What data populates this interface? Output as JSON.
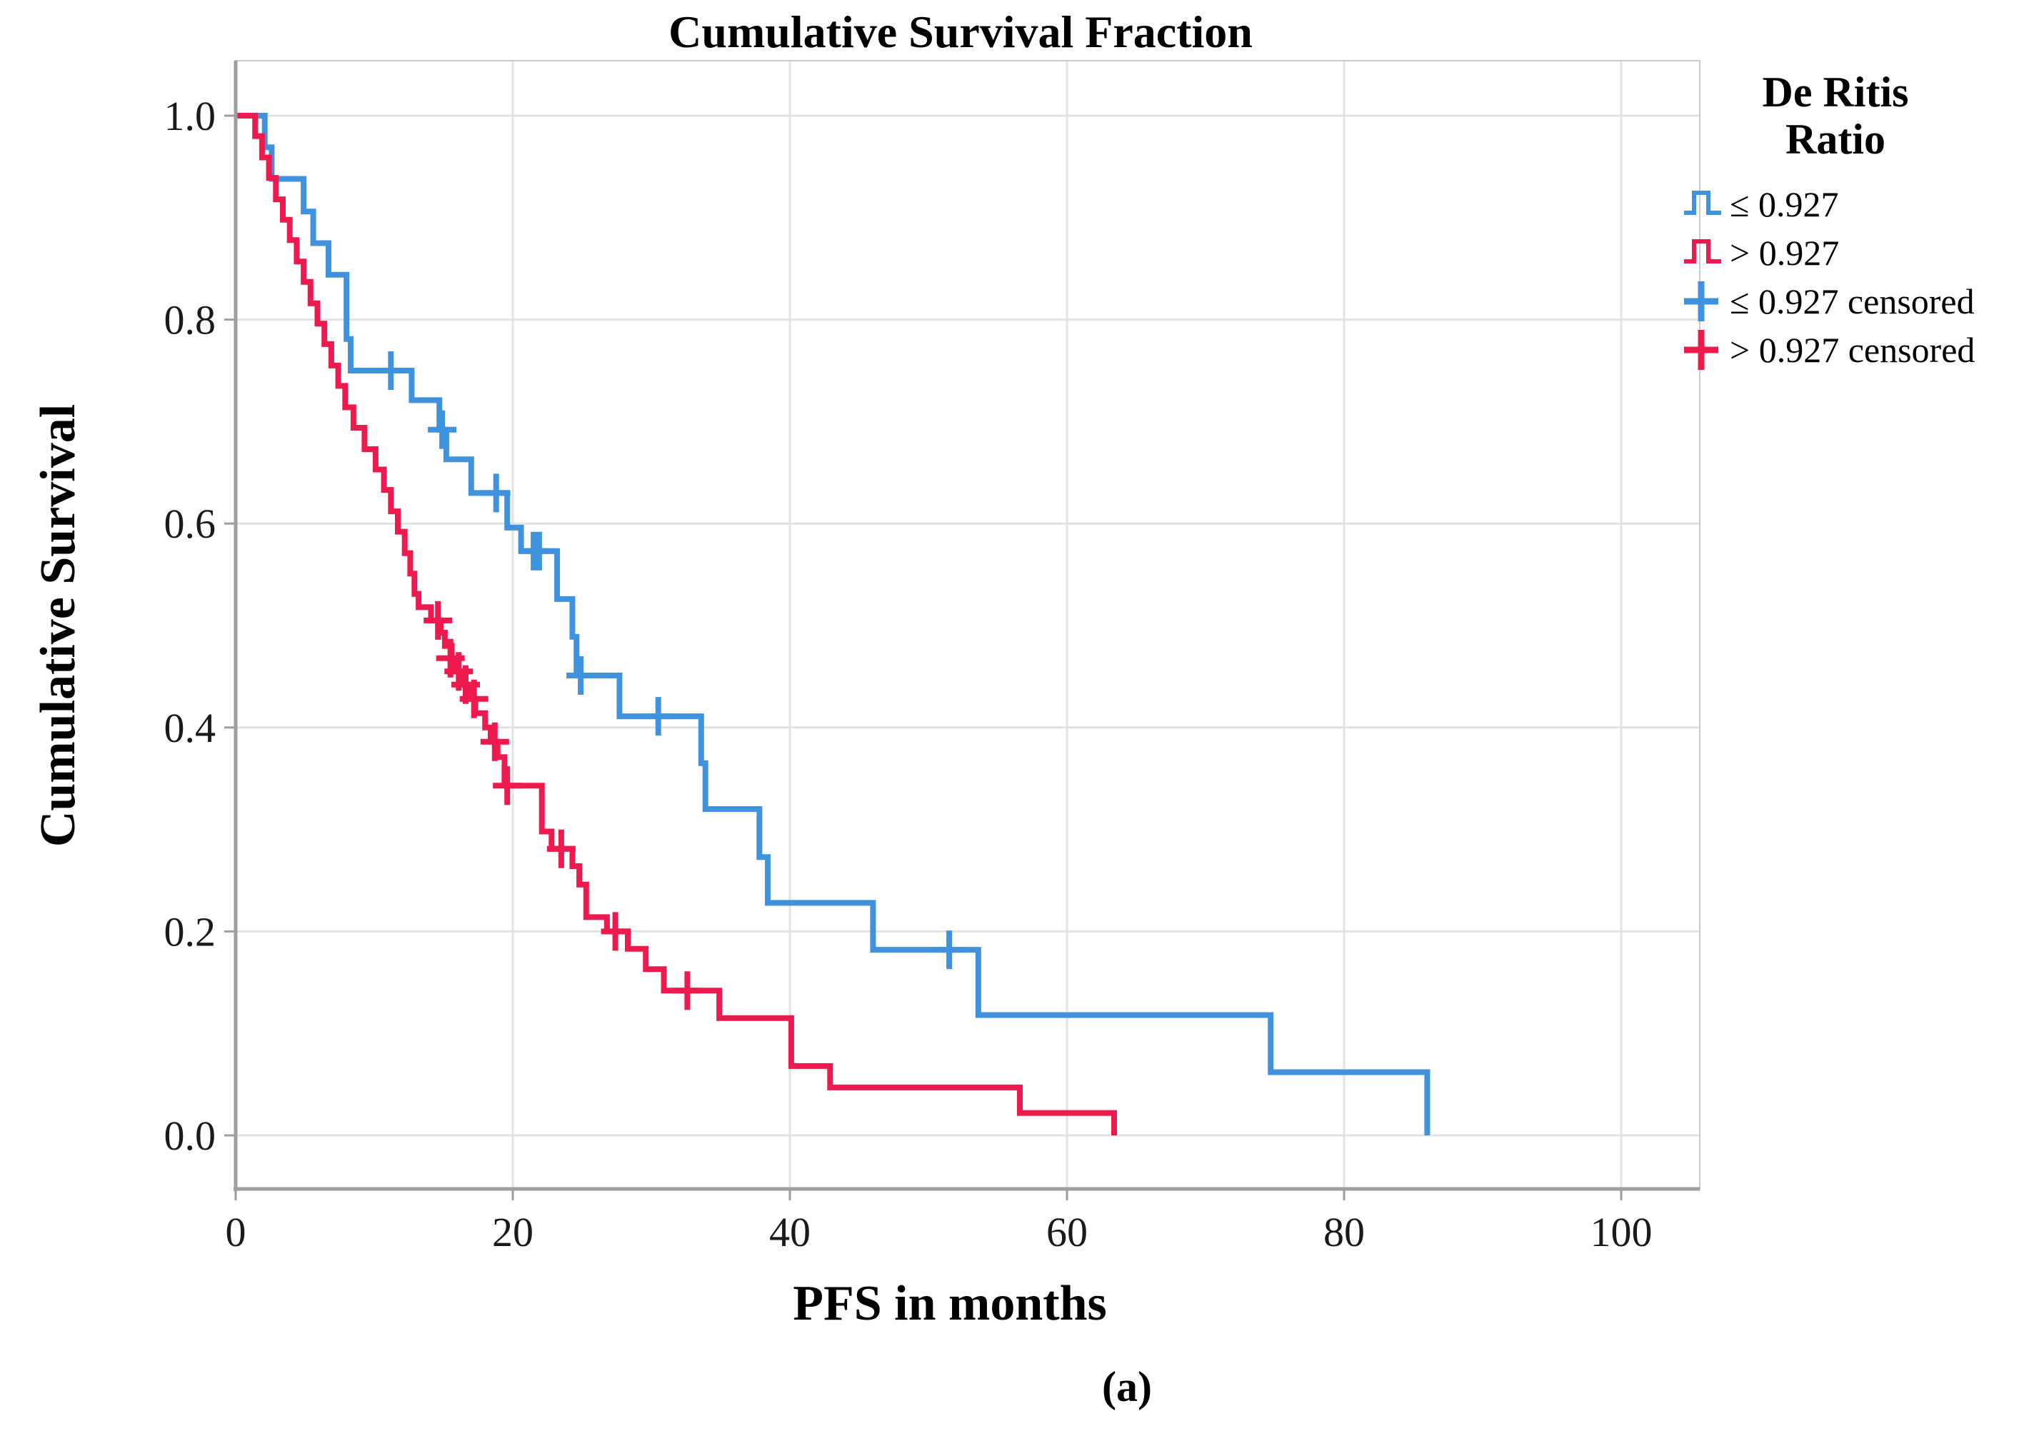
{
  "figure": {
    "title": "Cumulative Survival Fraction",
    "x_axis_title": "PFS in months",
    "y_axis_title": "Cumulative Survival",
    "caption": "(a)"
  },
  "legend": {
    "title_line1": "De Ritis",
    "title_line2": "Ratio",
    "items": [
      {
        "label": "≤ 0.927",
        "symbol": "step-line",
        "color": "#3f92dd"
      },
      {
        "label": "> 0.927",
        "symbol": "step-line",
        "color": "#ee1a4d"
      },
      {
        "label": "≤ 0.927 censored",
        "symbol": "plus-mark",
        "color": "#3f92dd"
      },
      {
        "label": "> 0.927 censored",
        "symbol": "plus-mark",
        "color": "#ee1a4d"
      }
    ]
  },
  "chart_data": {
    "type": "line",
    "subtype": "kaplan-meier-step",
    "title": "Cumulative Survival Fraction",
    "xlabel": "PFS in months",
    "ylabel": "Cumulative Survival",
    "x_ticks": [
      0,
      20,
      40,
      60,
      80,
      100
    ],
    "x_tick_labels": [
      "0",
      "20",
      "40",
      "60",
      "80",
      "100"
    ],
    "y_ticks": [
      0.0,
      0.2,
      0.4,
      0.6,
      0.8,
      1.0
    ],
    "y_tick_labels": [
      "0.0",
      "0.2",
      "0.4",
      "0.6",
      "0.8",
      "1.0"
    ],
    "xlim": [
      0,
      105.7
    ],
    "ylim": [
      0.0,
      1.0
    ],
    "grid": true,
    "legend_position": "right",
    "colors": {
      "group_low": "#3f92dd",
      "group_high": "#ee1a4d",
      "gridline": "#e2e2e2",
      "axis": "#9e9e9e",
      "frame": "#c9c9c9"
    },
    "series": [
      {
        "name": "≤ 0.927",
        "color": "#3f92dd",
        "points": [
          [
            0,
            1.0
          ],
          [
            2.1,
            0.969
          ],
          [
            2.6,
            0.938
          ],
          [
            4.9,
            0.906
          ],
          [
            5.6,
            0.875
          ],
          [
            6.7,
            0.844
          ],
          [
            8.0,
            0.781
          ],
          [
            8.3,
            0.75
          ],
          [
            12.7,
            0.721
          ],
          [
            14.7,
            0.692
          ],
          [
            15.2,
            0.663
          ],
          [
            17.0,
            0.63
          ],
          [
            19.6,
            0.596
          ],
          [
            20.6,
            0.573
          ],
          [
            23.2,
            0.526
          ],
          [
            24.3,
            0.489
          ],
          [
            24.6,
            0.451
          ],
          [
            27.7,
            0.411
          ],
          [
            33.6,
            0.365
          ],
          [
            33.9,
            0.32
          ],
          [
            37.8,
            0.273
          ],
          [
            38.4,
            0.228
          ],
          [
            46.0,
            0.182
          ],
          [
            53.6,
            0.118
          ],
          [
            74.7,
            0.062
          ],
          [
            86.0,
            0.0
          ]
        ],
        "censored": [
          [
            11.2,
            0.75
          ],
          [
            14.9,
            0.692
          ],
          [
            18.8,
            0.63
          ],
          [
            21.5,
            0.573
          ],
          [
            21.9,
            0.573
          ],
          [
            24.9,
            0.451
          ],
          [
            30.5,
            0.411
          ],
          [
            51.5,
            0.182
          ]
        ]
      },
      {
        "name": "> 0.927",
        "color": "#ee1a4d",
        "points": [
          [
            0,
            1.0
          ],
          [
            1.4,
            0.98
          ],
          [
            1.9,
            0.959
          ],
          [
            2.4,
            0.939
          ],
          [
            2.9,
            0.918
          ],
          [
            3.4,
            0.898
          ],
          [
            3.9,
            0.878
          ],
          [
            4.4,
            0.857
          ],
          [
            4.9,
            0.837
          ],
          [
            5.4,
            0.816
          ],
          [
            5.9,
            0.796
          ],
          [
            6.4,
            0.776
          ],
          [
            6.9,
            0.755
          ],
          [
            7.4,
            0.735
          ],
          [
            7.9,
            0.714
          ],
          [
            8.5,
            0.694
          ],
          [
            9.3,
            0.673
          ],
          [
            10.1,
            0.653
          ],
          [
            10.7,
            0.633
          ],
          [
            11.2,
            0.612
          ],
          [
            11.7,
            0.592
          ],
          [
            12.2,
            0.571
          ],
          [
            12.6,
            0.551
          ],
          [
            12.9,
            0.531
          ],
          [
            13.2,
            0.518
          ],
          [
            14.1,
            0.505
          ],
          [
            14.8,
            0.493
          ],
          [
            15.1,
            0.48
          ],
          [
            15.6,
            0.468
          ],
          [
            15.9,
            0.455
          ],
          [
            16.3,
            0.442
          ],
          [
            16.8,
            0.428
          ],
          [
            17.3,
            0.414
          ],
          [
            18.0,
            0.4
          ],
          [
            18.4,
            0.386
          ],
          [
            18.9,
            0.371
          ],
          [
            19.4,
            0.343
          ],
          [
            22.1,
            0.298
          ],
          [
            22.8,
            0.281
          ],
          [
            24.3,
            0.264
          ],
          [
            24.8,
            0.246
          ],
          [
            25.3,
            0.214
          ],
          [
            26.8,
            0.2
          ],
          [
            28.3,
            0.183
          ],
          [
            29.6,
            0.163
          ],
          [
            30.9,
            0.142
          ],
          [
            34.9,
            0.115
          ],
          [
            40.1,
            0.068
          ],
          [
            42.9,
            0.047
          ],
          [
            56.6,
            0.022
          ],
          [
            63.4,
            0.0
          ]
        ],
        "censored": [
          [
            14.6,
            0.505
          ],
          [
            15.5,
            0.468
          ],
          [
            16.1,
            0.455
          ],
          [
            16.6,
            0.442
          ],
          [
            17.2,
            0.428
          ],
          [
            18.7,
            0.386
          ],
          [
            19.6,
            0.343
          ],
          [
            23.5,
            0.281
          ],
          [
            27.4,
            0.2
          ],
          [
            32.6,
            0.142
          ]
        ]
      }
    ]
  }
}
